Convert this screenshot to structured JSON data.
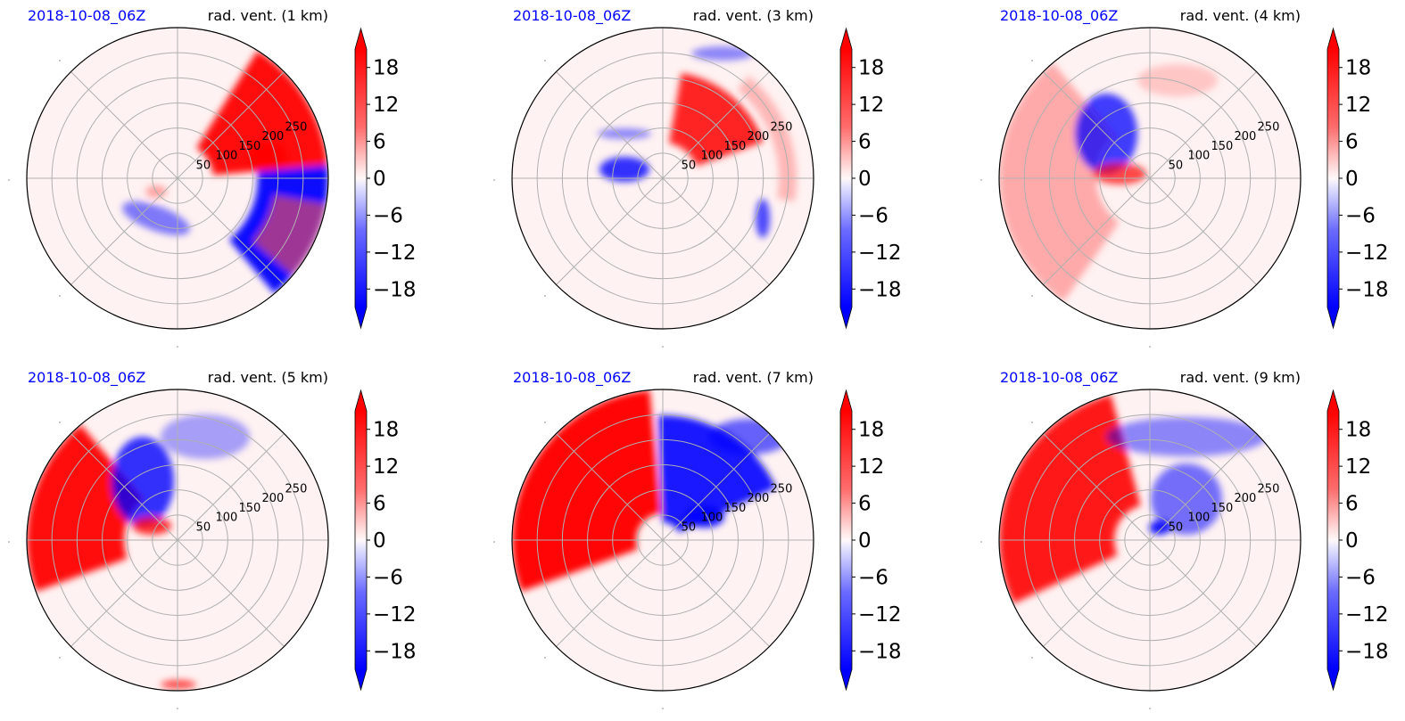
{
  "figure": {
    "colors": {
      "positive": "#ff0000",
      "negative": "#0000ff",
      "background": "#fff2f2",
      "date_label": "#0000ff",
      "grid": "#b0b0b0",
      "frame": "#000000"
    }
  },
  "chart_data": [
    {
      "type": "heatmap",
      "projection": "polar",
      "date_label": "2018-10-08_06Z",
      "title": "rad. vent. (1 km)",
      "radial_tick_labels": [
        "50",
        "100",
        "150",
        "200",
        "250"
      ],
      "colorbar": {
        "tick_labels": [
          "18",
          "12",
          "6",
          "0",
          "−6",
          "−12",
          "−18"
        ],
        "range": [
          -21,
          21
        ],
        "extend": "both"
      }
    },
    {
      "type": "heatmap",
      "projection": "polar",
      "date_label": "2018-10-08_06Z",
      "title": "rad. vent. (3 km)",
      "radial_tick_labels": [
        "50",
        "100",
        "150",
        "200",
        "250"
      ],
      "colorbar": {
        "tick_labels": [
          "18",
          "12",
          "6",
          "0",
          "−6",
          "−12",
          "−18"
        ],
        "range": [
          -21,
          21
        ],
        "extend": "both"
      }
    },
    {
      "type": "heatmap",
      "projection": "polar",
      "date_label": "2018-10-08_06Z",
      "title": "rad. vent. (4 km)",
      "radial_tick_labels": [
        "50",
        "100",
        "150",
        "200",
        "250"
      ],
      "colorbar": {
        "tick_labels": [
          "18",
          "12",
          "6",
          "0",
          "−6",
          "−12",
          "−18"
        ],
        "range": [
          -21,
          21
        ],
        "extend": "both"
      }
    },
    {
      "type": "heatmap",
      "projection": "polar",
      "date_label": "2018-10-08_06Z",
      "title": "rad. vent. (5 km)",
      "radial_tick_labels": [
        "50",
        "100",
        "150",
        "200",
        "250"
      ],
      "colorbar": {
        "tick_labels": [
          "18",
          "12",
          "6",
          "0",
          "−6",
          "−12",
          "−18"
        ],
        "range": [
          -21,
          21
        ],
        "extend": "both"
      }
    },
    {
      "type": "heatmap",
      "projection": "polar",
      "date_label": "2018-10-08_06Z",
      "title": "rad. vent. (7 km)",
      "radial_tick_labels": [
        "50",
        "100",
        "150",
        "200",
        "250"
      ],
      "colorbar": {
        "tick_labels": [
          "18",
          "12",
          "6",
          "0",
          "−6",
          "−12",
          "−18"
        ],
        "range": [
          -21,
          21
        ],
        "extend": "both"
      }
    },
    {
      "type": "heatmap",
      "projection": "polar",
      "date_label": "2018-10-08_06Z",
      "title": "rad. vent. (9 km)",
      "radial_tick_labels": [
        "50",
        "100",
        "150",
        "200",
        "250"
      ],
      "colorbar": {
        "tick_labels": [
          "18",
          "12",
          "6",
          "0",
          "−6",
          "−12",
          "−18"
        ],
        "range": [
          -21,
          21
        ],
        "extend": "both"
      }
    }
  ]
}
